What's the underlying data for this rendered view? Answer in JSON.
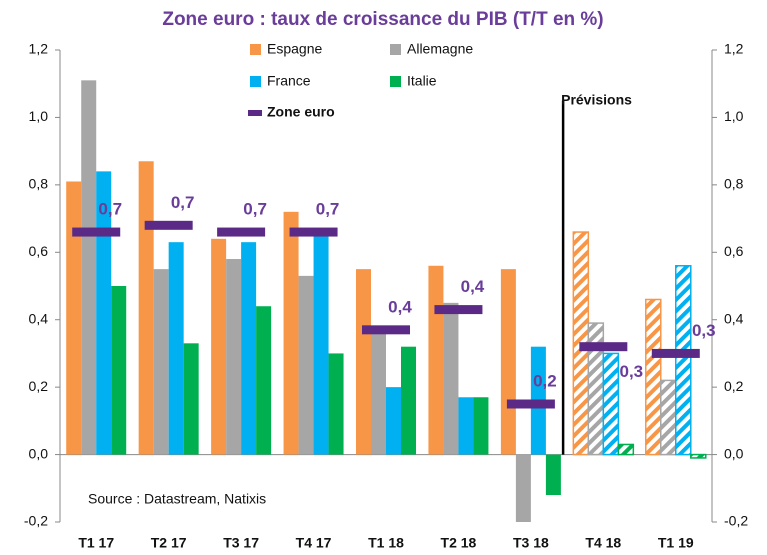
{
  "chart_data": {
    "type": "bar",
    "title": "Zone euro : taux de croissance du PIB  (T/T en %)",
    "categories": [
      "T1 17",
      "T2 17",
      "T3 17",
      "T4 17",
      "T1 18",
      "T2 18",
      "T3 18",
      "T4 18",
      "T1 19"
    ],
    "series": [
      {
        "name": "Espagne",
        "color": "#f79646",
        "values": [
          0.81,
          0.87,
          0.64,
          0.72,
          0.55,
          0.56,
          0.55,
          0.66,
          0.46
        ]
      },
      {
        "name": "Allemagne",
        "color": "#a6a6a6",
        "values": [
          1.11,
          0.55,
          0.58,
          0.53,
          0.37,
          0.45,
          -0.2,
          0.39,
          0.22
        ]
      },
      {
        "name": "France",
        "color": "#00b0f0",
        "values": [
          0.84,
          0.63,
          0.63,
          0.67,
          0.2,
          0.17,
          0.32,
          0.3,
          0.56
        ]
      },
      {
        "name": "Italie",
        "color": "#00b050",
        "values": [
          0.5,
          0.33,
          0.44,
          0.3,
          0.32,
          0.17,
          -0.12,
          0.03,
          -0.01
        ]
      },
      {
        "name": "Zone euro",
        "color": "#5b2a86",
        "kind": "marker",
        "values": [
          0.66,
          0.68,
          0.66,
          0.66,
          0.37,
          0.43,
          0.15,
          0.32,
          0.3
        ],
        "value_labels": [
          "0,7",
          "0,7",
          "0,7",
          "0,7",
          "0,4",
          "0,4",
          "0,2",
          "0,3",
          "0,3"
        ]
      }
    ],
    "ylim": [
      -0.2,
      1.2
    ],
    "yticks": [
      {
        "value": -0.2,
        "label": "-0,2"
      },
      {
        "value": 0,
        "label": "0,0"
      },
      {
        "value": 0.2,
        "label": "0,2"
      },
      {
        "value": 0.4,
        "label": "0,4"
      },
      {
        "value": 0.6,
        "label": "0,6"
      },
      {
        "value": 0.8,
        "label": "0,8"
      },
      {
        "value": 1,
        "label": "1,0"
      },
      {
        "value": 1.2,
        "label": "1,2"
      }
    ],
    "y2lim": [
      -0.2,
      1.2
    ],
    "y2ticks": [
      {
        "value": -0.2,
        "label": "-0,2"
      },
      {
        "value": 0,
        "label": "0,0"
      },
      {
        "value": 0.2,
        "label": "0,2"
      },
      {
        "value": 0.4,
        "label": "0,4"
      },
      {
        "value": 0.6,
        "label": "0,6"
      },
      {
        "value": 0.8,
        "label": "0,8"
      },
      {
        "value": 1,
        "label": "1,0"
      },
      {
        "value": 1.2,
        "label": "1,2"
      }
    ],
    "forecast": {
      "label": "Prévisions",
      "from_category": "T4 18"
    },
    "source": "Source : Datastream, Natixis"
  }
}
